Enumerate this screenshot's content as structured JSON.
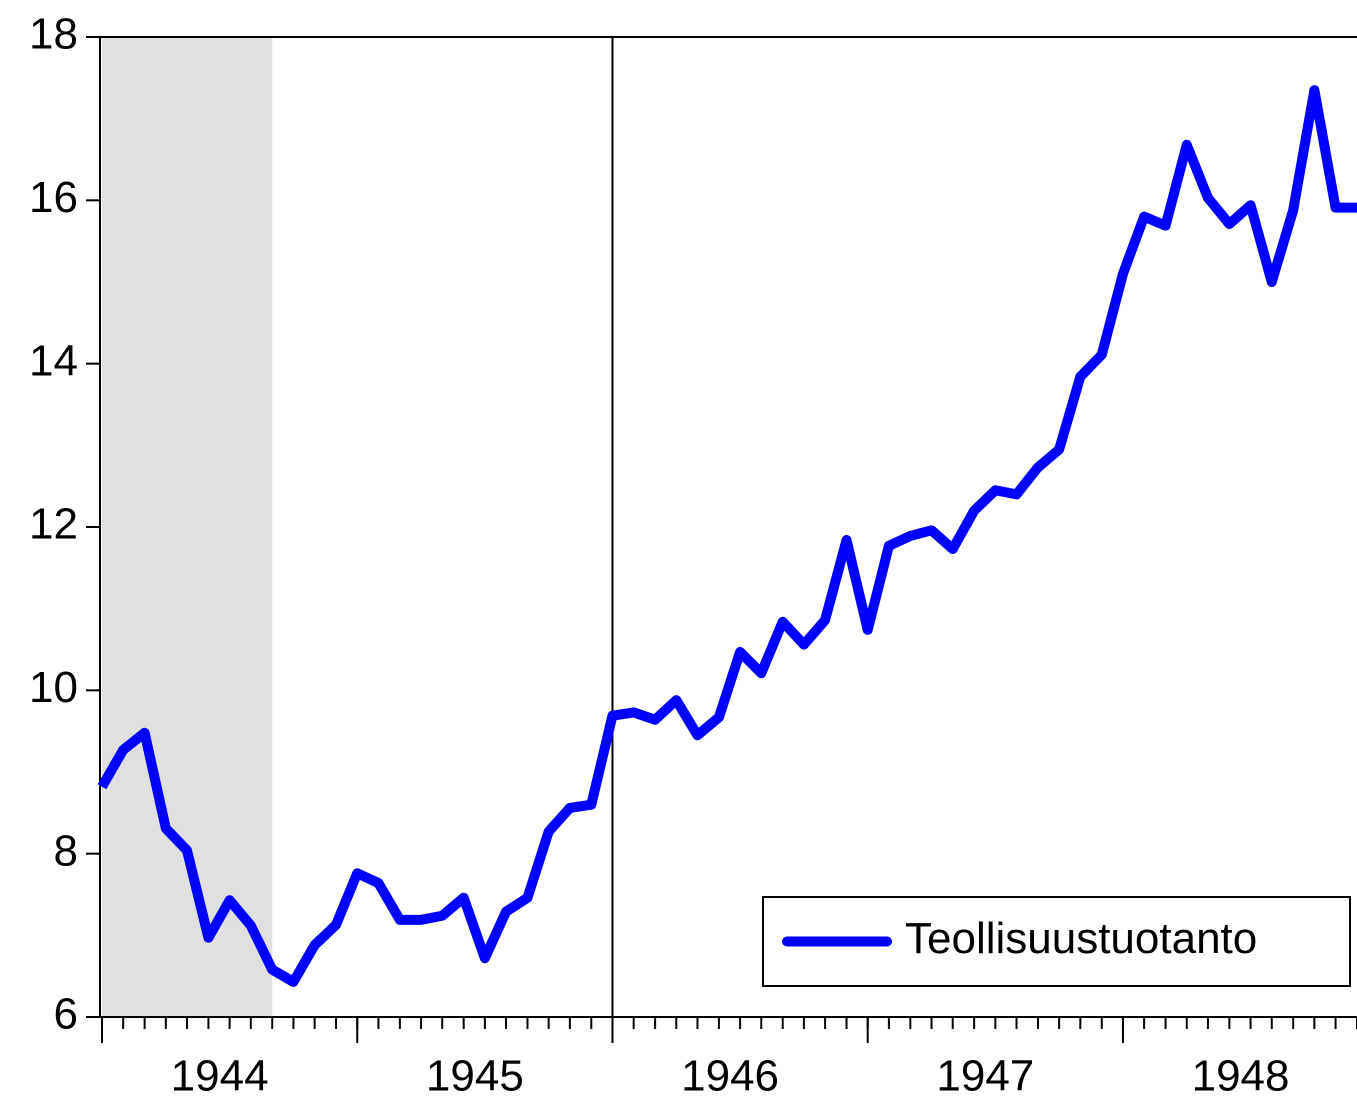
{
  "chart_data": {
    "type": "line",
    "x": [
      1944,
      1944.083,
      1944.167,
      1944.25,
      1944.333,
      1944.417,
      1944.5,
      1944.583,
      1944.667,
      1944.75,
      1944.833,
      1944.917,
      1945,
      1945.083,
      1945.167,
      1945.25,
      1945.333,
      1945.417,
      1945.5,
      1945.583,
      1945.667,
      1945.75,
      1945.833,
      1945.917,
      1946,
      1946.083,
      1946.167,
      1946.25,
      1946.333,
      1946.417,
      1946.5,
      1946.583,
      1946.667,
      1946.75,
      1946.833,
      1946.917,
      1947,
      1947.083,
      1947.167,
      1947.25,
      1947.333,
      1947.417,
      1947.5,
      1947.583,
      1947.667,
      1947.75,
      1947.833,
      1947.917,
      1948,
      1948.083,
      1948.167,
      1948.25,
      1948.333,
      1948.417,
      1948.5,
      1948.583,
      1948.667,
      1948.75,
      1948.833,
      1948.917
    ],
    "series": [
      {
        "name": "Teollisuustuotanto",
        "color": "#0000ff",
        "values": [
          8.82,
          9.27,
          9.48,
          8.31,
          8.04,
          6.97,
          7.43,
          7.12,
          6.58,
          6.43,
          6.88,
          7.13,
          7.76,
          7.64,
          7.19,
          7.19,
          7.24,
          7.46,
          6.72,
          7.29,
          7.46,
          8.27,
          8.56,
          8.6,
          9.69,
          9.73,
          9.64,
          9.88,
          9.45,
          9.67,
          10.47,
          10.21,
          10.84,
          10.56,
          10.86,
          11.84,
          10.74,
          11.77,
          11.89,
          11.96,
          11.73,
          12.2,
          12.45,
          12.4,
          12.73,
          12.95,
          13.84,
          14.11,
          15.1,
          15.8,
          15.69,
          16.68,
          16.03,
          15.71,
          15.94,
          15.0,
          15.88,
          17.35,
          15.91,
          15.91
        ]
      }
    ],
    "xlim": [
      1944,
      1948.917
    ],
    "xticks": [
      {
        "value": 1944,
        "label": "1944"
      },
      {
        "value": 1945,
        "label": "1945"
      },
      {
        "value": 1946,
        "label": "1946"
      },
      {
        "value": 1947,
        "label": "1947"
      },
      {
        "value": 1948,
        "label": "1948"
      }
    ],
    "ylim": [
      6,
      18
    ],
    "yticks": [
      6,
      8,
      10,
      12,
      14,
      16,
      18
    ],
    "shade": [
      1944,
      1944.667
    ],
    "shade_color": "#e0e0e0",
    "vline": 1946,
    "legend": "lower right"
  }
}
